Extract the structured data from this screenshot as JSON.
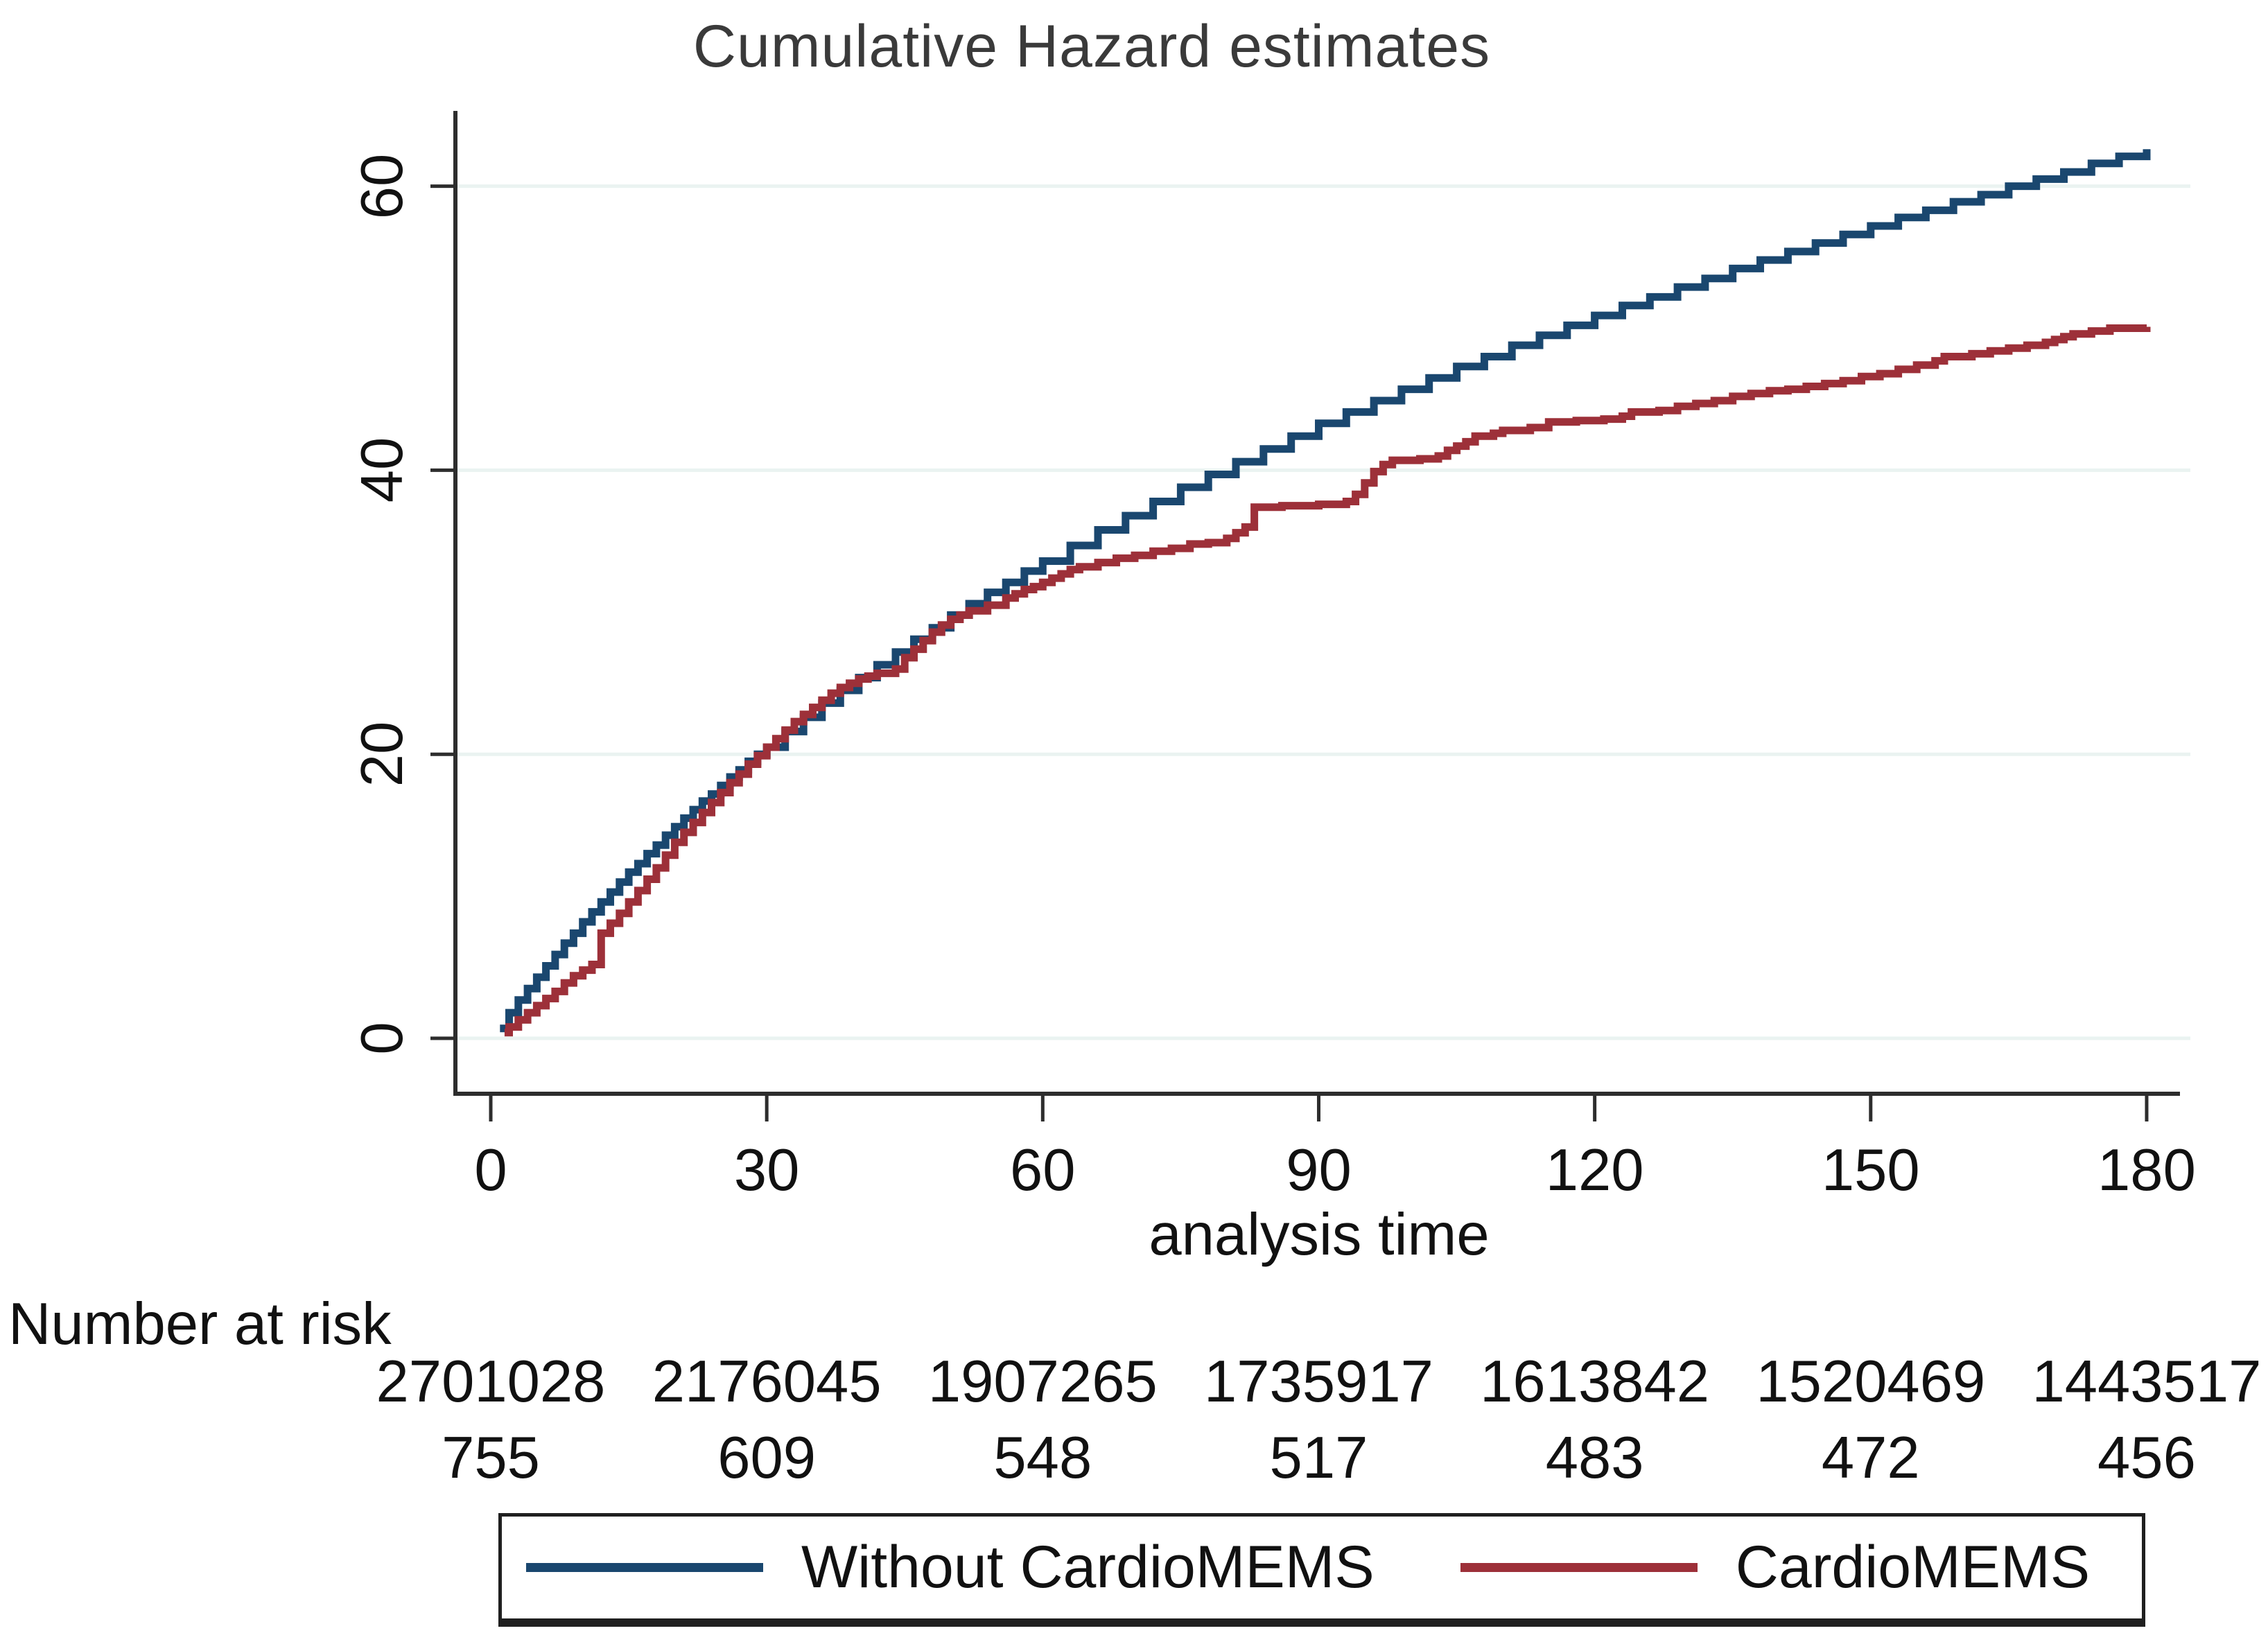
{
  "title": {
    "text": "Cumulative Hazard estimates"
  },
  "x_axis": {
    "label": "analysis time",
    "tick_labels": [
      "0",
      "30",
      "60",
      "90",
      "120",
      "150",
      "180"
    ],
    "tick_values": [
      0,
      30,
      60,
      90,
      120,
      150,
      180
    ]
  },
  "y_axis": {
    "tick_labels": [
      "0",
      "20",
      "40",
      "60"
    ],
    "tick_values": [
      0,
      20,
      40,
      60
    ]
  },
  "risk_table": {
    "heading": "Number at risk",
    "rows": [
      {
        "series": "Without CardioMEMS",
        "counts": [
          "2701028",
          "2176045",
          "1907265",
          "1735917",
          "1613842",
          "1520469",
          "1443517"
        ]
      },
      {
        "series": "CardioMEMS",
        "counts": [
          "755",
          "609",
          "548",
          "517",
          "483",
          "472",
          "456"
        ]
      }
    ]
  },
  "legend": {
    "items": [
      {
        "label": "Without CardioMEMS",
        "color": "#1a476f"
      },
      {
        "label": "CardioMEMS",
        "color": "#9d3039"
      }
    ]
  },
  "colors": {
    "without_cardiomems": "#1a476f",
    "cardiomems": "#9d3039",
    "gridline": "#eaf3f1",
    "axis": "#2d2d2d"
  },
  "chart_data": {
    "type": "line",
    "step": true,
    "title": "Cumulative Hazard estimates",
    "xlabel": "analysis time",
    "ylabel": "",
    "xlim": [
      0,
      186
    ],
    "ylim": [
      0,
      66
    ],
    "xticks": [
      0,
      30,
      60,
      90,
      120,
      150,
      180
    ],
    "yticks": [
      0,
      20,
      40,
      60
    ],
    "grid": "horizontal",
    "legend_position": "bottom",
    "series": [
      {
        "name": "Without CardioMEMS",
        "color": "#1a476f",
        "points": [
          [
            1,
            0.7
          ],
          [
            2,
            1.8
          ],
          [
            3,
            2.7
          ],
          [
            4,
            3.5
          ],
          [
            5,
            4.3
          ],
          [
            6,
            5.1
          ],
          [
            7,
            5.9
          ],
          [
            8,
            6.7
          ],
          [
            9,
            7.4
          ],
          [
            10,
            8.2
          ],
          [
            11,
            8.9
          ],
          [
            12,
            9.6
          ],
          [
            13,
            10.3
          ],
          [
            14,
            11.0
          ],
          [
            15,
            11.7
          ],
          [
            16,
            12.3
          ],
          [
            17,
            13.0
          ],
          [
            18,
            13.6
          ],
          [
            19,
            14.3
          ],
          [
            20,
            14.9
          ],
          [
            21,
            15.5
          ],
          [
            22,
            16.1
          ],
          [
            23,
            16.7
          ],
          [
            24,
            17.2
          ],
          [
            25,
            17.8
          ],
          [
            26,
            18.4
          ],
          [
            27,
            18.9
          ],
          [
            28,
            19.5
          ],
          [
            29,
            20.0
          ],
          [
            30,
            20.5
          ],
          [
            32,
            21.6
          ],
          [
            34,
            22.6
          ],
          [
            36,
            23.6
          ],
          [
            38,
            24.5
          ],
          [
            40,
            25.4
          ],
          [
            42,
            26.3
          ],
          [
            44,
            27.2
          ],
          [
            46,
            28.1
          ],
          [
            48,
            28.9
          ],
          [
            50,
            29.8
          ],
          [
            52,
            30.6
          ],
          [
            54,
            31.4
          ],
          [
            56,
            32.1
          ],
          [
            58,
            32.9
          ],
          [
            60,
            33.6
          ],
          [
            63,
            34.7
          ],
          [
            66,
            35.8
          ],
          [
            69,
            36.8
          ],
          [
            72,
            37.8
          ],
          [
            75,
            38.8
          ],
          [
            78,
            39.7
          ],
          [
            81,
            40.6
          ],
          [
            84,
            41.5
          ],
          [
            87,
            42.4
          ],
          [
            90,
            43.3
          ],
          [
            93,
            44.1
          ],
          [
            96,
            44.9
          ],
          [
            99,
            45.7
          ],
          [
            102,
            46.5
          ],
          [
            105,
            47.3
          ],
          [
            108,
            48.0
          ],
          [
            111,
            48.8
          ],
          [
            114,
            49.5
          ],
          [
            117,
            50.2
          ],
          [
            120,
            50.9
          ],
          [
            123,
            51.6
          ],
          [
            126,
            52.2
          ],
          [
            129,
            52.9
          ],
          [
            132,
            53.5
          ],
          [
            135,
            54.2
          ],
          [
            138,
            54.8
          ],
          [
            141,
            55.4
          ],
          [
            144,
            56.0
          ],
          [
            147,
            56.6
          ],
          [
            150,
            57.2
          ],
          [
            153,
            57.8
          ],
          [
            156,
            58.3
          ],
          [
            159,
            58.9
          ],
          [
            162,
            59.4
          ],
          [
            165,
            60.0
          ],
          [
            168,
            60.5
          ],
          [
            171,
            61.0
          ],
          [
            174,
            61.6
          ],
          [
            177,
            62.1
          ],
          [
            180,
            62.6
          ]
        ]
      },
      {
        "name": "CardioMEMS",
        "color": "#9d3039",
        "points": [
          [
            1.5,
            0.4
          ],
          [
            2,
            0.8
          ],
          [
            3,
            1.3
          ],
          [
            4,
            1.8
          ],
          [
            5,
            2.3
          ],
          [
            6,
            2.8
          ],
          [
            7,
            3.3
          ],
          [
            8,
            3.9
          ],
          [
            9,
            4.4
          ],
          [
            10,
            4.8
          ],
          [
            11,
            5.2
          ],
          [
            12,
            7.4
          ],
          [
            13,
            8.1
          ],
          [
            14,
            8.8
          ],
          [
            15,
            9.6
          ],
          [
            16,
            10.4
          ],
          [
            17,
            11.2
          ],
          [
            18,
            12.0
          ],
          [
            19,
            12.9
          ],
          [
            20,
            13.8
          ],
          [
            21,
            14.5
          ],
          [
            22,
            15.2
          ],
          [
            23,
            15.9
          ],
          [
            24,
            16.6
          ],
          [
            25,
            17.3
          ],
          [
            26,
            18.0
          ],
          [
            27,
            18.6
          ],
          [
            28,
            19.3
          ],
          [
            29,
            19.9
          ],
          [
            30,
            20.5
          ],
          [
            31,
            21.1
          ],
          [
            32,
            21.7
          ],
          [
            33,
            22.3
          ],
          [
            34,
            22.8
          ],
          [
            35,
            23.3
          ],
          [
            36,
            23.8
          ],
          [
            37,
            24.3
          ],
          [
            38,
            24.7
          ],
          [
            39,
            25.0
          ],
          [
            40,
            25.3
          ],
          [
            41,
            25.5
          ],
          [
            42,
            25.7
          ],
          [
            44,
            26.0
          ],
          [
            45,
            26.8
          ],
          [
            46,
            27.4
          ],
          [
            47,
            28.0
          ],
          [
            48,
            28.6
          ],
          [
            49,
            29.1
          ],
          [
            50,
            29.5
          ],
          [
            51,
            29.8
          ],
          [
            52,
            30.1
          ],
          [
            54,
            30.5
          ],
          [
            56,
            31.0
          ],
          [
            57,
            31.3
          ],
          [
            58,
            31.6
          ],
          [
            59,
            31.8
          ],
          [
            60,
            32.1
          ],
          [
            61,
            32.4
          ],
          [
            62,
            32.7
          ],
          [
            63,
            33.0
          ],
          [
            64,
            33.2
          ],
          [
            66,
            33.5
          ],
          [
            68,
            33.8
          ],
          [
            70,
            34.0
          ],
          [
            72,
            34.3
          ],
          [
            74,
            34.5
          ],
          [
            76,
            34.8
          ],
          [
            78,
            34.9
          ],
          [
            80,
            35.2
          ],
          [
            81,
            35.6
          ],
          [
            82,
            36.0
          ],
          [
            83,
            37.4
          ],
          [
            86,
            37.5
          ],
          [
            90,
            37.6
          ],
          [
            93,
            37.8
          ],
          [
            94,
            38.3
          ],
          [
            95,
            39.1
          ],
          [
            96,
            39.9
          ],
          [
            97,
            40.4
          ],
          [
            98,
            40.7
          ],
          [
            101,
            40.8
          ],
          [
            103,
            41.0
          ],
          [
            104,
            41.4
          ],
          [
            105,
            41.7
          ],
          [
            106,
            42.0
          ],
          [
            107,
            42.4
          ],
          [
            109,
            42.6
          ],
          [
            110,
            42.8
          ],
          [
            113,
            43.0
          ],
          [
            115,
            43.4
          ],
          [
            118,
            43.5
          ],
          [
            121,
            43.6
          ],
          [
            123,
            43.8
          ],
          [
            124,
            44.1
          ],
          [
            127,
            44.2
          ],
          [
            129,
            44.5
          ],
          [
            131,
            44.7
          ],
          [
            133,
            44.9
          ],
          [
            135,
            45.2
          ],
          [
            137,
            45.4
          ],
          [
            139,
            45.6
          ],
          [
            141,
            45.7
          ],
          [
            143,
            45.9
          ],
          [
            145,
            46.1
          ],
          [
            147,
            46.3
          ],
          [
            149,
            46.6
          ],
          [
            151,
            46.8
          ],
          [
            153,
            47.1
          ],
          [
            155,
            47.4
          ],
          [
            157,
            47.7
          ],
          [
            158,
            48.0
          ],
          [
            161,
            48.2
          ],
          [
            163,
            48.4
          ],
          [
            165,
            48.6
          ],
          [
            167,
            48.8
          ],
          [
            169,
            49.0
          ],
          [
            170,
            49.2
          ],
          [
            171,
            49.4
          ],
          [
            172,
            49.6
          ],
          [
            174,
            49.8
          ],
          [
            176,
            50.0
          ],
          [
            180,
            50.1
          ]
        ]
      }
    ]
  }
}
